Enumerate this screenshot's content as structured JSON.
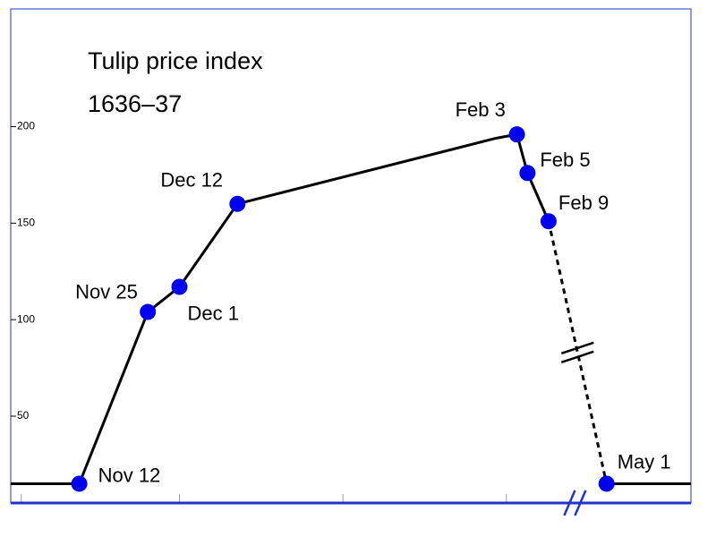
{
  "chart_data": {
    "type": "line",
    "title": [
      "Tulip price index",
      "1636–37"
    ],
    "x": [
      "1636-10-30",
      "1636-11-12",
      "1636-11-25",
      "1636-12-01",
      "1636-12-12",
      "1637-01-30",
      "1637-02-03",
      "1637-02-05",
      "1637-02-09",
      "1637-05-01",
      "1637-05-17"
    ],
    "values": [
      15,
      15,
      104,
      117,
      160,
      194,
      196,
      176,
      151,
      15,
      15
    ],
    "point_labels": [
      null,
      "Nov 12",
      "Nov 25",
      "Dec 1",
      "Dec 12",
      null,
      "Feb 3",
      "Feb 5",
      "Feb 9",
      "May 1",
      null
    ],
    "color": "#000000",
    "marker_color": "#0000ee",
    "axis_color": "#2233cc",
    "xlim": [
      "1636-10-30",
      "1637-05-17"
    ],
    "xbreak": [
      "1637-02-14",
      "1637-04-25"
    ],
    "xticks": [
      "1636-11-01",
      "1636-12-01",
      "1637-01-01",
      "1637-02-01"
    ],
    "ylim": [
      5,
      261
    ],
    "yticks": [
      50,
      100,
      150,
      200
    ]
  }
}
